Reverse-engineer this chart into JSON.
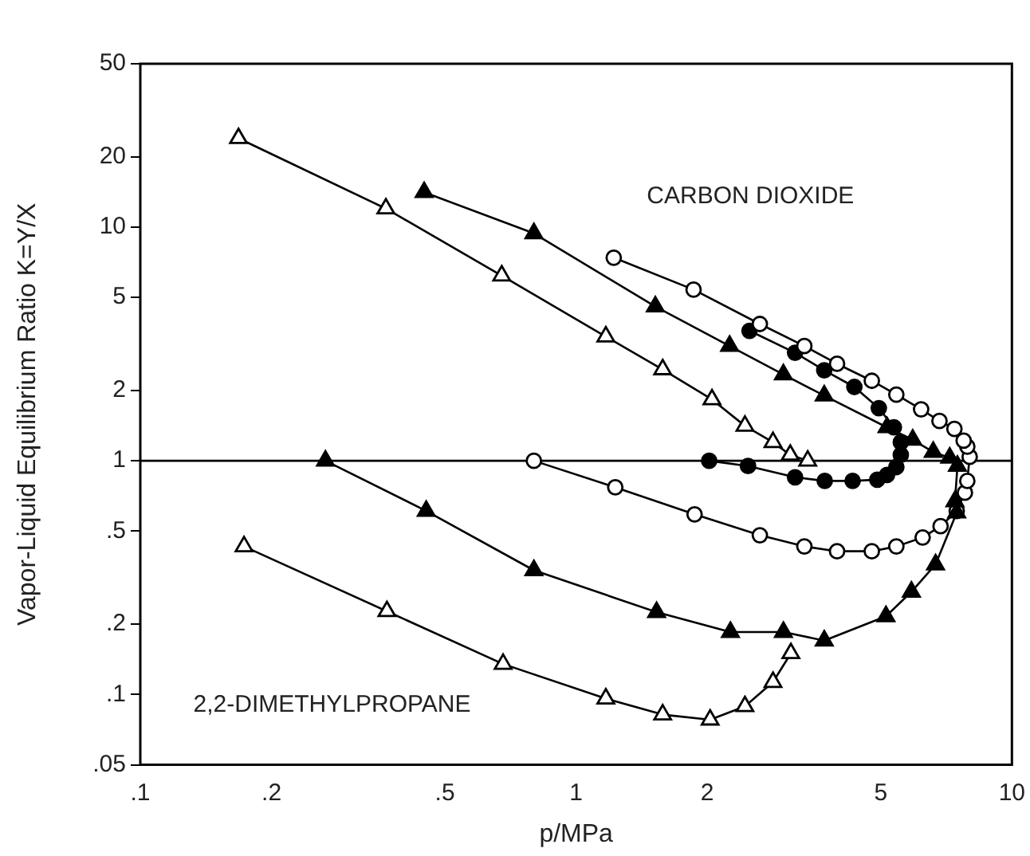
{
  "chart_data": {
    "type": "line",
    "xlabel": "p/MPa",
    "ylabel": "Vapor-Liquid Equilibrium Ratio K=Y/X",
    "log": "xy",
    "xlim": [
      0.1,
      10
    ],
    "ylim": [
      0.05,
      50
    ],
    "xticks": [
      {
        "value": 0.1,
        "label": ".1"
      },
      {
        "value": 0.2,
        "label": ".2"
      },
      {
        "value": 0.5,
        "label": ".5"
      },
      1,
      2,
      5,
      10
    ],
    "yticks": [
      {
        "value": 0.05,
        "label": ".05"
      },
      {
        "value": 0.1,
        "label": ".1"
      },
      {
        "value": 0.2,
        "label": ".2"
      },
      {
        "value": 0.5,
        "label": ".5"
      },
      1,
      2,
      5,
      10,
      20,
      50
    ],
    "grid": false,
    "line_style": "solid",
    "series": [
      {
        "color": "#000000",
        "colors": [
          "#ffffff",
          "#ffffff",
          "#ffffff",
          "#ffffff",
          "#ffffff",
          "#ffffff",
          "#ffffff",
          "#ffffff",
          "#ffffff"
        ],
        "marker": "triangle",
        "x": [
          0.173,
          0.368,
          0.68,
          1.17,
          1.58,
          2.03,
          2.44,
          2.83,
          3.11
        ],
        "values": [
          0.43,
          0.227,
          0.135,
          0.096,
          0.082,
          0.078,
          0.089,
          0.113,
          0.15
        ]
      },
      {
        "color": "#000000",
        "colors": [
          "#ffffff",
          "#ffffff",
          "#ffffff",
          "#ffffff",
          "#ffffff",
          "#ffffff",
          "#ffffff",
          "#ffffff",
          "#ffffff",
          "#ffffff"
        ],
        "marker": "triangle",
        "x": [
          0.168,
          0.366,
          0.675,
          1.17,
          1.58,
          2.05,
          2.44,
          2.83,
          3.1,
          3.4
        ],
        "values": [
          24,
          12,
          6.2,
          3.4,
          2.46,
          1.83,
          1.41,
          1.2,
          1.06,
          1.0
        ]
      },
      {
        "color": "#000000",
        "marker": "triangle",
        "x": [
          0.266,
          0.453,
          0.8,
          1.53,
          2.26,
          2.99,
          3.71,
          5.14,
          5.88,
          6.68,
          7.47,
          7.4,
          7.5,
          7.2,
          6.6,
          5.92,
          5.17,
          3.71,
          2.99,
          2.25,
          1.52,
          0.8,
          0.448
        ],
        "values": [
          1.0,
          0.61,
          0.34,
          0.225,
          0.185,
          0.185,
          0.17,
          0.216,
          0.275,
          0.36,
          0.6,
          0.67,
          0.95,
          1.03,
          1.09,
          1.23,
          1.39,
          1.9,
          2.34,
          3.1,
          4.57,
          9.4,
          14.1
        ]
      },
      {
        "color": "#000000",
        "colors": [
          "#ffffff",
          "#ffffff",
          "#ffffff",
          "#ffffff",
          "#ffffff",
          "#ffffff",
          "#ffffff",
          "#ffffff",
          "#ffffff",
          "#ffffff",
          "#ffffff",
          "#ffffff",
          "#ffffff",
          "#ffffff",
          "#ffffff",
          "#ffffff",
          "#ffffff",
          "#ffffff",
          "#ffffff",
          "#ffffff",
          "#ffffff",
          "#ffffff",
          "#ffffff",
          "#ffffff",
          "#ffffff",
          "#ffffff"
        ],
        "marker": "circle",
        "x": [
          0.8,
          1.23,
          1.87,
          2.64,
          3.34,
          3.97,
          4.77,
          5.43,
          6.24,
          6.86,
          7.47,
          7.8,
          7.9,
          8.0,
          7.9,
          7.75,
          7.38,
          6.82,
          6.19,
          5.43,
          4.77,
          3.97,
          3.34,
          2.64,
          1.86,
          1.22
        ],
        "values": [
          1.0,
          0.77,
          0.59,
          0.48,
          0.43,
          0.41,
          0.41,
          0.43,
          0.47,
          0.525,
          0.61,
          0.73,
          0.82,
          1.04,
          1.15,
          1.22,
          1.37,
          1.48,
          1.66,
          1.92,
          2.2,
          2.6,
          3.1,
          3.85,
          5.4,
          7.4
        ]
      },
      {
        "color": "#000000",
        "marker": "circle",
        "x": [
          2.02,
          2.48,
          3.18,
          3.72,
          4.31,
          4.91,
          5.17,
          5.43,
          5.56,
          5.56,
          5.36,
          4.95,
          4.35,
          3.71,
          3.18,
          2.5
        ],
        "values": [
          1.0,
          0.95,
          0.85,
          0.82,
          0.82,
          0.83,
          0.87,
          0.94,
          1.06,
          1.2,
          1.39,
          1.68,
          2.07,
          2.44,
          2.9,
          3.6
        ]
      }
    ],
    "ref_lines": [
      {
        "axis": "y",
        "value": 1,
        "color": "#000000"
      }
    ],
    "annotations": [
      "CARBON DIOXIDE",
      "2,2-DIMETHYLPROPANE"
    ]
  }
}
